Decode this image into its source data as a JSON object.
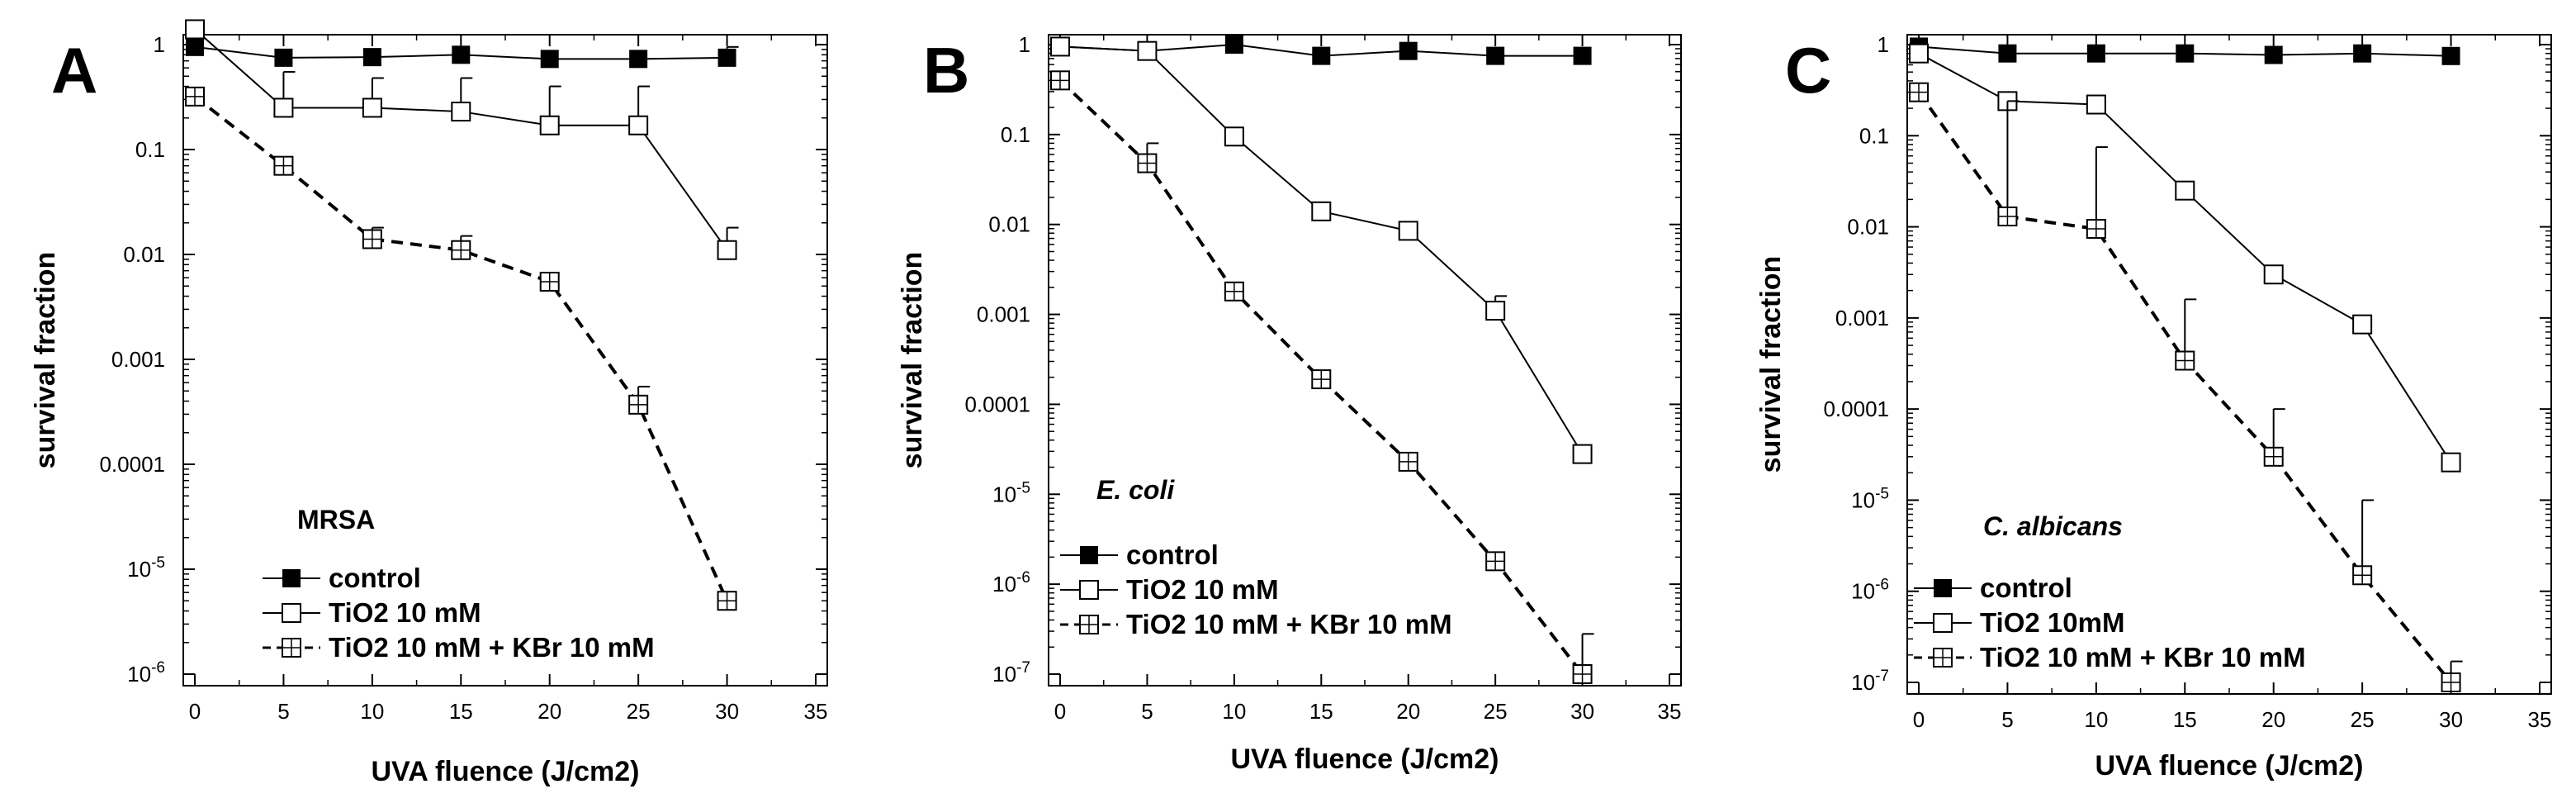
{
  "chart_data": [
    {
      "type": "line",
      "panel_label": "A",
      "organism": "MRSA",
      "organism_italic": false,
      "xlabel": "UVA fluence (J/cm2)",
      "ylabel": "survival fraction",
      "x_ticks": [
        "0",
        "5",
        "10",
        "15",
        "20",
        "25",
        "30",
        "35"
      ],
      "y_ticks": [
        "1",
        "0.1",
        "0.01",
        "0.001",
        "0.0001",
        "10^-5",
        "10^-6"
      ],
      "xlim": [
        0,
        35
      ],
      "ylim_log10": [
        -6,
        0
      ],
      "x": [
        0,
        5,
        10,
        15,
        20,
        25,
        30
      ],
      "series": [
        {
          "name": "control",
          "marker": "filled-square",
          "line": "solid",
          "values": [
            0.95,
            0.75,
            0.76,
            0.8,
            0.73,
            0.73,
            0.75
          ],
          "err_upper": [
            null,
            null,
            null,
            null,
            null,
            null,
            0.95
          ]
        },
        {
          "name": "TiO2 10 mM",
          "marker": "open-square",
          "line": "solid",
          "values": [
            1.4,
            0.25,
            0.25,
            0.23,
            0.17,
            0.17,
            0.011
          ],
          "err_upper": [
            null,
            0.55,
            0.48,
            0.48,
            0.4,
            0.4,
            0.018
          ]
        },
        {
          "name": "TiO2 10 mM + KBr 10 mM",
          "marker": "open-square-cross",
          "line": "dashed",
          "values": [
            0.32,
            0.07,
            0.014,
            0.011,
            0.0055,
            0.00037,
            5e-06
          ],
          "err_upper": [
            null,
            null,
            0.018,
            0.015,
            null,
            0.00055,
            null
          ]
        }
      ]
    },
    {
      "type": "line",
      "panel_label": "B",
      "organism": "E. coli",
      "organism_italic": true,
      "xlabel": "UVA fluence (J/cm2)",
      "ylabel": "survival fraction",
      "x_ticks": [
        "0",
        "5",
        "10",
        "15",
        "20",
        "25",
        "30",
        "35"
      ],
      "y_ticks": [
        "1",
        "0.1",
        "0.01",
        "0.001",
        "0.0001",
        "10^-5",
        "10^-6",
        "10^-7"
      ],
      "xlim": [
        0,
        35
      ],
      "ylim_log10": [
        -7,
        0
      ],
      "x": [
        0,
        5,
        10,
        15,
        20,
        25,
        30
      ],
      "series": [
        {
          "name": "control",
          "marker": "filled-square",
          "line": "solid",
          "values": [
            0.95,
            0.85,
            1.0,
            0.75,
            0.85,
            0.75,
            0.75
          ],
          "err_upper": [
            null,
            null,
            null,
            null,
            null,
            null,
            null
          ]
        },
        {
          "name": "TiO2 10 mM",
          "marker": "open-square",
          "line": "solid",
          "values": [
            0.95,
            0.85,
            0.095,
            0.014,
            0.0085,
            0.0011,
            2.8e-05
          ],
          "err_upper": [
            null,
            null,
            null,
            null,
            null,
            0.0016,
            null
          ]
        },
        {
          "name": "TiO2 10 mM + KBr 10 mM",
          "marker": "open-square-cross",
          "line": "dashed",
          "values": [
            0.4,
            0.048,
            0.0018,
            0.00019,
            2.3e-05,
            1.8e-06,
            1e-07
          ],
          "err_upper": [
            null,
            0.08,
            null,
            null,
            null,
            null,
            2.8e-07
          ]
        }
      ]
    },
    {
      "type": "line",
      "panel_label": "C",
      "organism": "C. albicans",
      "organism_italic": true,
      "xlabel": "UVA fluence (J/cm2)",
      "ylabel": "survival fraction",
      "x_ticks": [
        "0",
        "5",
        "10",
        "15",
        "20",
        "25",
        "30",
        "35"
      ],
      "y_ticks": [
        "1",
        "0.1",
        "0.01",
        "0.001",
        "0.0001",
        "10^-5",
        "10^-6",
        "10^-7"
      ],
      "xlim": [
        0,
        35
      ],
      "ylim_log10": [
        -7,
        0
      ],
      "x": [
        0,
        5,
        10,
        15,
        20,
        25,
        30
      ],
      "series": [
        {
          "name": "control",
          "marker": "filled-square",
          "line": "solid",
          "values": [
            0.95,
            0.8,
            0.8,
            0.8,
            0.77,
            0.8,
            0.75
          ],
          "err_upper": [
            null,
            null,
            null,
            null,
            null,
            null,
            null
          ]
        },
        {
          "name": "TiO2 10mM",
          "marker": "open-square",
          "line": "solid",
          "values": [
            0.8,
            0.24,
            0.22,
            0.025,
            0.003,
            0.00085,
            2.6e-05
          ],
          "err_upper": [
            null,
            null,
            null,
            null,
            null,
            null,
            null
          ]
        },
        {
          "name": "TiO2 10 mM + KBr 10 mM",
          "marker": "open-square-cross",
          "line": "dashed",
          "values": [
            0.3,
            0.013,
            0.0095,
            0.00034,
            3e-05,
            1.5e-06,
            1e-07
          ],
          "err_upper": [
            null,
            0.24,
            0.075,
            0.0016,
            0.0001,
            1e-05,
            1.7e-07
          ]
        }
      ]
    }
  ]
}
